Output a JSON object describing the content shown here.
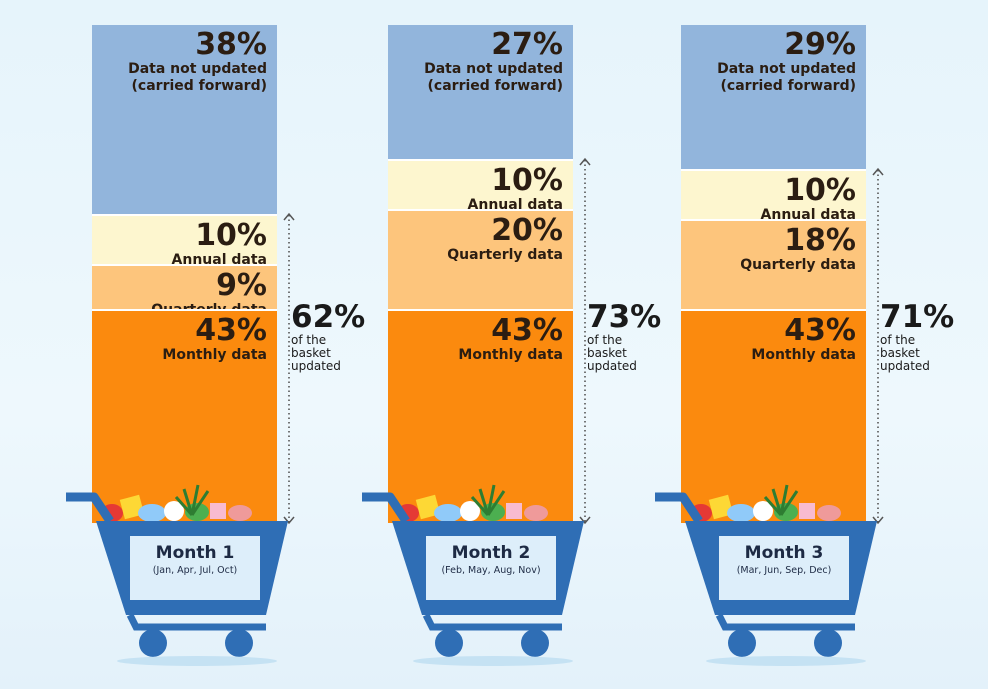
{
  "chart_data": [
    {
      "type": "bar",
      "stacked": true,
      "category": "Month 1",
      "category_sub": "(Jan, Apr, Jul, Oct)",
      "segments": [
        {
          "name": "Data not updated (carried forward)",
          "label_line1": "Data not updated",
          "label_line2": "(carried forward)",
          "value": 38,
          "value_label": "38%"
        },
        {
          "name": "Annual data",
          "label_line1": "Annual data",
          "value": 10,
          "value_label": "10%"
        },
        {
          "name": "Quarterly data",
          "label_line1": "Quarterly data",
          "value": 9,
          "value_label": "9%"
        },
        {
          "name": "Monthly data",
          "label_line1": "Monthly data",
          "value": 43,
          "value_label": "43%"
        }
      ],
      "updated_total": 62,
      "updated_total_label": "62%",
      "updated_caption": "of the basket updated"
    },
    {
      "type": "bar",
      "stacked": true,
      "category": "Month 2",
      "category_sub": "(Feb, May, Aug, Nov)",
      "segments": [
        {
          "name": "Data not updated (carried forward)",
          "label_line1": "Data not updated",
          "label_line2": "(carried forward)",
          "value": 27,
          "value_label": "27%"
        },
        {
          "name": "Annual data",
          "label_line1": "Annual data",
          "value": 10,
          "value_label": "10%"
        },
        {
          "name": "Quarterly data",
          "label_line1": "Quarterly data",
          "value": 20,
          "value_label": "20%"
        },
        {
          "name": "Monthly data",
          "label_line1": "Monthly data",
          "value": 43,
          "value_label": "43%"
        }
      ],
      "updated_total": 73,
      "updated_total_label": "73%",
      "updated_caption": "of the basket updated"
    },
    {
      "type": "bar",
      "stacked": true,
      "category": "Month 3",
      "category_sub": "(Mar, Jun, Sep, Dec)",
      "segments": [
        {
          "name": "Data not updated (carried forward)",
          "label_line1": "Data not updated",
          "label_line2": "(carried forward)",
          "value": 29,
          "value_label": "29%"
        },
        {
          "name": "Annual data",
          "label_line1": "Annual data",
          "value": 10,
          "value_label": "10%"
        },
        {
          "name": "Quarterly data",
          "label_line1": "Quarterly data",
          "value": 18,
          "value_label": "18%"
        },
        {
          "name": "Monthly data",
          "label_line1": "Monthly data",
          "value": 43,
          "value_label": "43%"
        }
      ],
      "updated_total": 71,
      "updated_total_label": "71%",
      "updated_caption": "of the basket updated"
    }
  ],
  "colors": {
    "carried": "#92b5dc",
    "annual": "#fdf6cf",
    "quarterly": "#fdc57c",
    "monthly": "#fb8a0e",
    "cart": "#2f6eb5",
    "cart_label_bg": "#ddeefa"
  },
  "icons": [
    "shopping-cart-icon",
    "groceries-icon",
    "double-arrow-icon"
  ]
}
